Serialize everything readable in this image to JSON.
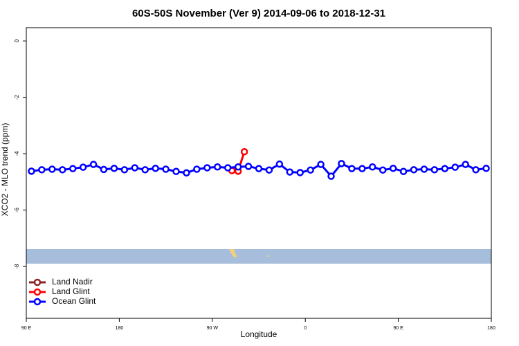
{
  "chart_data": {
    "type": "line",
    "title": "60S-50S November (Ver 9)   2014-09-06 to 2018-12-31",
    "x_label": "Longitude",
    "y_label": "XCO2 - MLO trend (ppm)",
    "xlim": [
      90,
      540
    ],
    "xticks": [
      {
        "value": 90,
        "label": "90 E"
      },
      {
        "value": 180,
        "label": "180"
      },
      {
        "value": 270,
        "label": "90 W"
      },
      {
        "value": 360,
        "label": "0"
      },
      {
        "value": 450,
        "label": "90 E"
      },
      {
        "value": 540,
        "label": "180"
      }
    ],
    "ylim": [
      -9.84,
      0.47
    ],
    "yticks": [
      0,
      -2,
      -4,
      -6,
      -8
    ],
    "legend": "bottomleft",
    "series": [
      {
        "name": "Land Nadir",
        "color": "#8b2323",
        "x": [],
        "values": []
      },
      {
        "name": "Land Glint",
        "color": "#ff0000",
        "x": [
          289,
          295,
          301
        ],
        "values": [
          -4.6,
          -4.62,
          -3.93
        ]
      },
      {
        "name": "Ocean Glint",
        "color": "#0000ff",
        "x": [
          95,
          105,
          115,
          125,
          135,
          145,
          155,
          165,
          175,
          185,
          195,
          205,
          215,
          225,
          235,
          245,
          255,
          265,
          275,
          285,
          295,
          305,
          315,
          325,
          335,
          345,
          355,
          365,
          375,
          385,
          395,
          405,
          415,
          425,
          435,
          445,
          455,
          465,
          475,
          485,
          495,
          505,
          515,
          525,
          535
        ],
        "values": [
          -4.62,
          -4.57,
          -4.55,
          -4.57,
          -4.53,
          -4.48,
          -4.38,
          -4.56,
          -4.52,
          -4.57,
          -4.5,
          -4.57,
          -4.52,
          -4.55,
          -4.63,
          -4.68,
          -4.55,
          -4.5,
          -4.47,
          -4.5,
          -4.47,
          -4.45,
          -4.53,
          -4.58,
          -4.37,
          -4.65,
          -4.67,
          -4.58,
          -4.38,
          -4.8,
          -4.35,
          -4.53,
          -4.53,
          -4.47,
          -4.58,
          -4.52,
          -4.63,
          -4.57,
          -4.55,
          -4.57,
          -4.53,
          -4.48,
          -4.38,
          -4.57,
          -4.52
        ]
      }
    ]
  }
}
